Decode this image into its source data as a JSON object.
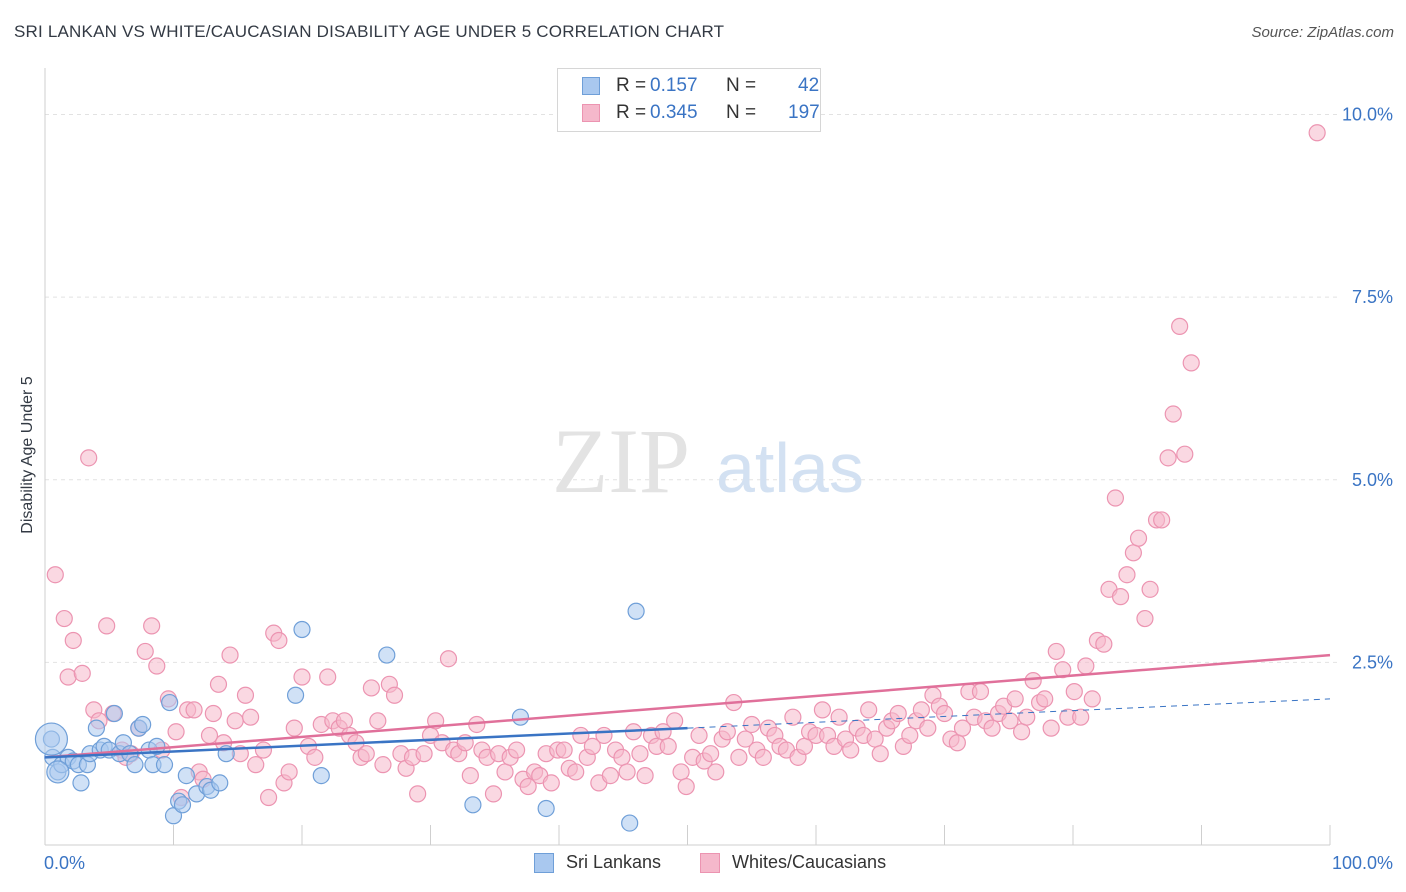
{
  "title": "SRI LANKAN VS WHITE/CAUCASIAN DISABILITY AGE UNDER 5 CORRELATION CHART",
  "source": "Source: ZipAtlas.com",
  "watermark": {
    "zip": "ZIP",
    "atlas": "atlas"
  },
  "legend": {
    "r_label": "R =",
    "n_label": "N =",
    "rows": [
      {
        "name": "Sri Lankans",
        "r": "0.157",
        "n": "42"
      },
      {
        "name": "Whites/Caucasians",
        "r": "0.345",
        "n": "197"
      }
    ]
  },
  "colors": {
    "blue_fill": "#a9c8ef",
    "blue_stroke": "#6f9fd8",
    "blue_line": "#3a74c4",
    "pink_fill": "#f5b8cb",
    "pink_stroke": "#ec94b1",
    "pink_line": "#e0709a",
    "axis_label": "#3a74c4",
    "grid": "#e2e2e2"
  },
  "chart_data": {
    "type": "scatter",
    "title": "SRI LANKAN VS WHITE/CAUCASIAN DISABILITY AGE UNDER 5 CORRELATION CHART",
    "xlabel": "",
    "ylabel": "Disability Age Under 5",
    "xlim": [
      0,
      100
    ],
    "ylim": [
      0,
      10.5
    ],
    "x_tick_labels": [
      "0.0%",
      "100.0%"
    ],
    "y_ticks": [
      2.5,
      5.0,
      7.5,
      10.0
    ],
    "y_tick_labels": [
      "2.5%",
      "5.0%",
      "7.5%",
      "10.0%"
    ],
    "grid": true,
    "series": [
      {
        "name": "Sri Lankans",
        "trend": {
          "x": [
            0,
            50
          ],
          "y": [
            1.2,
            1.6
          ],
          "dashed_to": [
            100,
            2.0
          ]
        },
        "points": [
          [
            0.5,
            1.45
          ],
          [
            0.6,
            1.2
          ],
          [
            1.0,
            1.0
          ],
          [
            1.3,
            1.1
          ],
          [
            1.8,
            1.2
          ],
          [
            2.2,
            1.15
          ],
          [
            2.6,
            1.1
          ],
          [
            2.8,
            0.85
          ],
          [
            3.3,
            1.1
          ],
          [
            3.5,
            1.25
          ],
          [
            4.0,
            1.6
          ],
          [
            4.3,
            1.3
          ],
          [
            4.6,
            1.35
          ],
          [
            5.0,
            1.3
          ],
          [
            5.4,
            1.8
          ],
          [
            5.8,
            1.25
          ],
          [
            6.1,
            1.4
          ],
          [
            6.6,
            1.25
          ],
          [
            7.0,
            1.1
          ],
          [
            7.3,
            1.6
          ],
          [
            7.6,
            1.65
          ],
          [
            8.1,
            1.3
          ],
          [
            8.4,
            1.1
          ],
          [
            8.7,
            1.35
          ],
          [
            9.3,
            1.1
          ],
          [
            9.7,
            1.95
          ],
          [
            10.0,
            0.4
          ],
          [
            10.4,
            0.6
          ],
          [
            10.7,
            0.55
          ],
          [
            11.0,
            0.95
          ],
          [
            11.8,
            0.7
          ],
          [
            12.6,
            0.8
          ],
          [
            12.9,
            0.75
          ],
          [
            13.6,
            0.85
          ],
          [
            14.1,
            1.25
          ],
          [
            19.5,
            2.05
          ],
          [
            20.0,
            2.95
          ],
          [
            21.5,
            0.95
          ],
          [
            26.6,
            2.6
          ],
          [
            33.3,
            0.55
          ],
          [
            37.0,
            1.75
          ],
          [
            39.0,
            0.5
          ],
          [
            45.5,
            0.3
          ],
          [
            46.0,
            3.2
          ]
        ]
      },
      {
        "name": "Whites/Caucasians",
        "trend": {
          "x": [
            0,
            100
          ],
          "y": [
            1.2,
            2.6
          ]
        },
        "points": [
          [
            0.8,
            3.7
          ],
          [
            1.5,
            3.1
          ],
          [
            1.8,
            2.3
          ],
          [
            2.2,
            2.8
          ],
          [
            2.9,
            2.35
          ],
          [
            3.4,
            5.3
          ],
          [
            3.8,
            1.85
          ],
          [
            4.2,
            1.7
          ],
          [
            4.8,
            3.0
          ],
          [
            5.3,
            1.8
          ],
          [
            6.0,
            1.3
          ],
          [
            6.3,
            1.2
          ],
          [
            6.7,
            1.25
          ],
          [
            7.3,
            1.6
          ],
          [
            7.8,
            2.65
          ],
          [
            8.3,
            3.0
          ],
          [
            8.7,
            2.45
          ],
          [
            9.1,
            1.3
          ],
          [
            9.6,
            2.0
          ],
          [
            10.2,
            1.55
          ],
          [
            10.6,
            0.65
          ],
          [
            11.1,
            1.85
          ],
          [
            11.6,
            1.85
          ],
          [
            12.0,
            1.0
          ],
          [
            12.3,
            0.9
          ],
          [
            12.8,
            1.5
          ],
          [
            13.1,
            1.8
          ],
          [
            13.5,
            2.2
          ],
          [
            13.9,
            1.4
          ],
          [
            14.4,
            2.6
          ],
          [
            14.8,
            1.7
          ],
          [
            15.2,
            1.25
          ],
          [
            15.6,
            2.05
          ],
          [
            16.0,
            1.75
          ],
          [
            16.4,
            1.1
          ],
          [
            17.0,
            1.3
          ],
          [
            17.4,
            0.65
          ],
          [
            17.8,
            2.9
          ],
          [
            18.2,
            2.8
          ],
          [
            18.6,
            0.85
          ],
          [
            19.0,
            1.0
          ],
          [
            19.4,
            1.6
          ],
          [
            20.0,
            2.3
          ],
          [
            20.5,
            1.35
          ],
          [
            21.0,
            1.2
          ],
          [
            21.5,
            1.65
          ],
          [
            22.0,
            2.3
          ],
          [
            22.4,
            1.7
          ],
          [
            22.9,
            1.6
          ],
          [
            23.3,
            1.7
          ],
          [
            23.7,
            1.5
          ],
          [
            24.2,
            1.4
          ],
          [
            24.6,
            1.2
          ],
          [
            25.0,
            1.25
          ],
          [
            25.4,
            2.15
          ],
          [
            25.9,
            1.7
          ],
          [
            26.3,
            1.1
          ],
          [
            26.8,
            2.2
          ],
          [
            27.2,
            2.05
          ],
          [
            27.7,
            1.25
          ],
          [
            28.1,
            1.05
          ],
          [
            28.6,
            1.2
          ],
          [
            29.0,
            0.7
          ],
          [
            29.5,
            1.25
          ],
          [
            30.0,
            1.5
          ],
          [
            30.4,
            1.7
          ],
          [
            30.9,
            1.4
          ],
          [
            31.4,
            2.55
          ],
          [
            31.8,
            1.3
          ],
          [
            32.2,
            1.25
          ],
          [
            32.7,
            1.4
          ],
          [
            33.1,
            0.95
          ],
          [
            33.6,
            1.65
          ],
          [
            34.0,
            1.3
          ],
          [
            34.4,
            1.2
          ],
          [
            34.9,
            0.7
          ],
          [
            35.3,
            1.25
          ],
          [
            35.8,
            1.0
          ],
          [
            36.2,
            1.2
          ],
          [
            36.7,
            1.3
          ],
          [
            37.2,
            0.9
          ],
          [
            37.6,
            0.8
          ],
          [
            38.1,
            1.0
          ],
          [
            38.5,
            0.95
          ],
          [
            39.0,
            1.25
          ],
          [
            39.4,
            0.85
          ],
          [
            39.9,
            1.3
          ],
          [
            40.4,
            1.3
          ],
          [
            40.8,
            1.05
          ],
          [
            41.3,
            1.0
          ],
          [
            41.7,
            1.5
          ],
          [
            42.2,
            1.2
          ],
          [
            42.6,
            1.35
          ],
          [
            43.1,
            0.85
          ],
          [
            43.5,
            1.5
          ],
          [
            44.0,
            0.95
          ],
          [
            44.4,
            1.3
          ],
          [
            44.9,
            1.2
          ],
          [
            45.3,
            1.0
          ],
          [
            45.8,
            1.55
          ],
          [
            46.3,
            1.25
          ],
          [
            46.7,
            0.95
          ],
          [
            47.2,
            1.5
          ],
          [
            47.6,
            1.35
          ],
          [
            48.1,
            1.55
          ],
          [
            48.5,
            1.35
          ],
          [
            49.0,
            1.7
          ],
          [
            49.5,
            1.0
          ],
          [
            49.9,
            0.8
          ],
          [
            50.4,
            1.2
          ],
          [
            50.9,
            1.5
          ],
          [
            51.3,
            1.15
          ],
          [
            51.8,
            1.25
          ],
          [
            52.2,
            1.0
          ],
          [
            52.7,
            1.45
          ],
          [
            53.1,
            1.55
          ],
          [
            53.6,
            1.95
          ],
          [
            54.0,
            1.2
          ],
          [
            54.5,
            1.45
          ],
          [
            55.0,
            1.65
          ],
          [
            55.4,
            1.3
          ],
          [
            55.9,
            1.2
          ],
          [
            56.3,
            1.6
          ],
          [
            56.8,
            1.5
          ],
          [
            57.2,
            1.35
          ],
          [
            57.7,
            1.3
          ],
          [
            58.2,
            1.75
          ],
          [
            58.6,
            1.2
          ],
          [
            59.1,
            1.35
          ],
          [
            59.5,
            1.55
          ],
          [
            60.0,
            1.5
          ],
          [
            60.5,
            1.85
          ],
          [
            60.9,
            1.5
          ],
          [
            61.4,
            1.35
          ],
          [
            61.8,
            1.75
          ],
          [
            62.3,
            1.45
          ],
          [
            62.7,
            1.3
          ],
          [
            63.2,
            1.6
          ],
          [
            63.7,
            1.5
          ],
          [
            64.1,
            1.85
          ],
          [
            64.6,
            1.45
          ],
          [
            65.0,
            1.25
          ],
          [
            65.5,
            1.6
          ],
          [
            65.9,
            1.7
          ],
          [
            66.4,
            1.8
          ],
          [
            66.8,
            1.35
          ],
          [
            67.3,
            1.5
          ],
          [
            67.8,
            1.7
          ],
          [
            68.2,
            1.85
          ],
          [
            68.7,
            1.6
          ],
          [
            69.1,
            2.05
          ],
          [
            69.6,
            1.9
          ],
          [
            70.0,
            1.8
          ],
          [
            70.5,
            1.45
          ],
          [
            71.0,
            1.4
          ],
          [
            71.4,
            1.6
          ],
          [
            71.9,
            2.1
          ],
          [
            72.3,
            1.75
          ],
          [
            72.8,
            2.1
          ],
          [
            73.2,
            1.7
          ],
          [
            73.7,
            1.6
          ],
          [
            74.2,
            1.8
          ],
          [
            74.6,
            1.9
          ],
          [
            75.1,
            1.7
          ],
          [
            75.5,
            2.0
          ],
          [
            76.0,
            1.55
          ],
          [
            76.4,
            1.75
          ],
          [
            76.9,
            2.25
          ],
          [
            77.4,
            1.95
          ],
          [
            77.8,
            2.0
          ],
          [
            78.3,
            1.6
          ],
          [
            78.7,
            2.65
          ],
          [
            79.2,
            2.4
          ],
          [
            79.6,
            1.75
          ],
          [
            80.1,
            2.1
          ],
          [
            80.6,
            1.75
          ],
          [
            81.0,
            2.45
          ],
          [
            81.5,
            2.0
          ],
          [
            81.9,
            2.8
          ],
          [
            82.4,
            2.75
          ],
          [
            82.8,
            3.5
          ],
          [
            83.3,
            4.75
          ],
          [
            83.7,
            3.4
          ],
          [
            84.2,
            3.7
          ],
          [
            84.7,
            4.0
          ],
          [
            85.1,
            4.2
          ],
          [
            85.6,
            3.1
          ],
          [
            86.0,
            3.5
          ],
          [
            86.5,
            4.45
          ],
          [
            86.9,
            4.45
          ],
          [
            87.4,
            5.3
          ],
          [
            87.8,
            5.9
          ],
          [
            88.3,
            7.1
          ],
          [
            88.7,
            5.35
          ],
          [
            89.2,
            6.6
          ],
          [
            99.0,
            9.75
          ]
        ]
      }
    ]
  }
}
